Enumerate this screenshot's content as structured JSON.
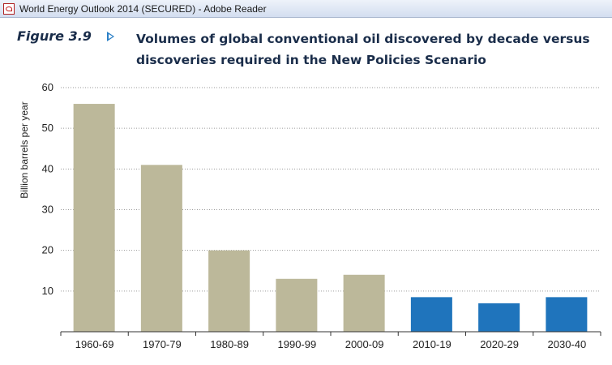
{
  "window": {
    "title": "World Energy Outlook 2014 (SECURED) - Adobe Reader",
    "icon": "pdf-app-icon"
  },
  "figure": {
    "label": "Figure 3.9",
    "title": "Volumes of global conventional oil discovered by decade versus discoveries required in the New Policies Scenario",
    "arrow_color": "#2a7fc6"
  },
  "chart_data": {
    "type": "bar",
    "categories": [
      "1960-69",
      "1970-79",
      "1980-89",
      "1990-99",
      "2000-09",
      "2010-19",
      "2020-29",
      "2030-40"
    ],
    "values": [
      56,
      41,
      20,
      13,
      14,
      8.5,
      7,
      8.5
    ],
    "colors": [
      "#bcb89a",
      "#bcb89a",
      "#bcb89a",
      "#bcb89a",
      "#bcb89a",
      "#1f74bc",
      "#1f74bc",
      "#1f74bc"
    ],
    "ylabel": "Billion barrels per year",
    "xlabel": "",
    "ylim": [
      0,
      60
    ],
    "yticks": [
      10,
      20,
      30,
      40,
      50,
      60
    ],
    "grid": true,
    "legend": "none"
  }
}
